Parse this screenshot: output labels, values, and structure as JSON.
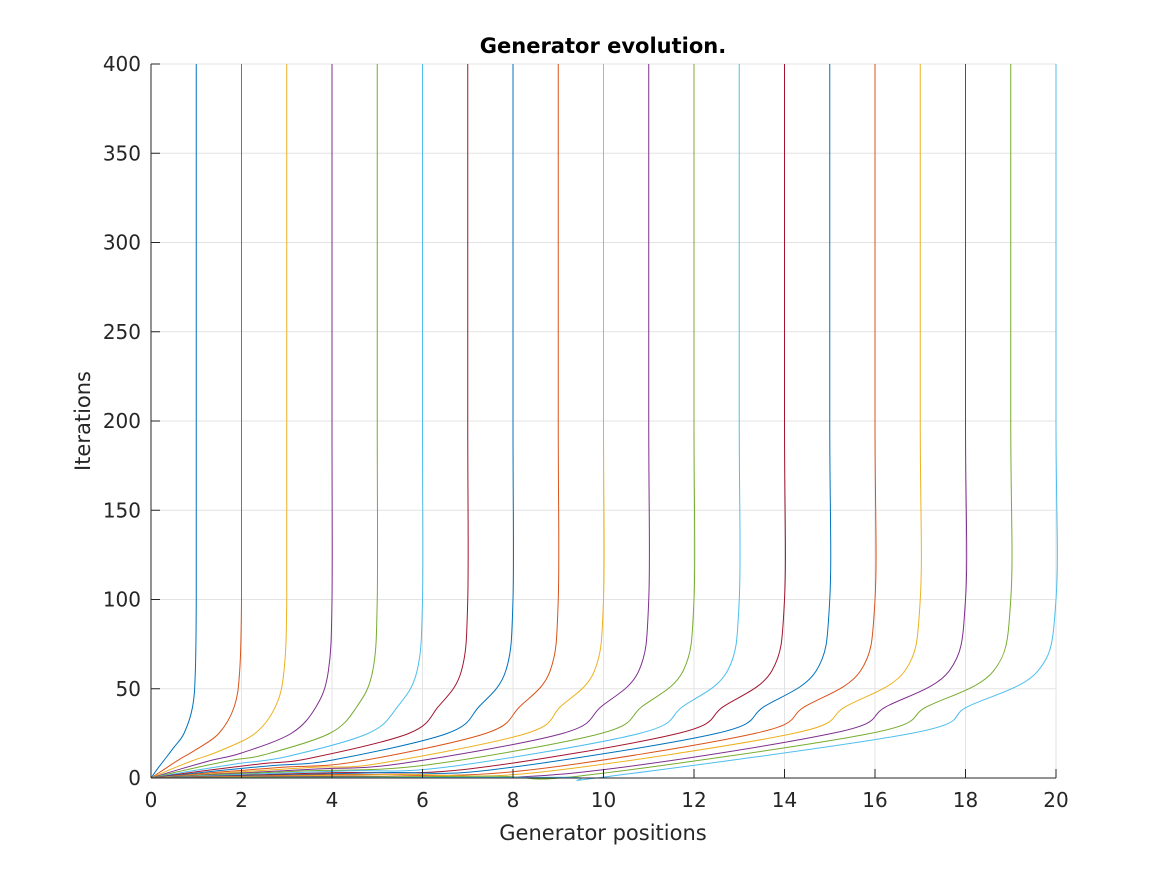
{
  "chart_data": {
    "type": "line",
    "title": "Generator evolution.",
    "xlabel": "Generator positions",
    "ylabel": "Iterations",
    "xlim": [
      0,
      20
    ],
    "ylim": [
      0,
      400
    ],
    "xticks": [
      0,
      2,
      4,
      6,
      8,
      10,
      12,
      14,
      16,
      18,
      20
    ],
    "yticks": [
      0,
      50,
      100,
      150,
      200,
      250,
      300,
      350,
      400
    ],
    "grid": true,
    "legend": "none",
    "series_shape": "Each generator starts at position 0 and moves right, converging to its final integer position; curve k reaches about half of its final position by iteration ~ (20-k)*0.85 and stays vertical up to iteration 400.",
    "series": [
      {
        "final_position": 1,
        "color": "#0072BD",
        "iterations": [
          0,
          5,
          10,
          17,
          25,
          40,
          60,
          100,
          200,
          400
        ],
        "positions": [
          0,
          0.14,
          0.29,
          0.5,
          0.73,
          0.92,
          0.98,
          1,
          1,
          1
        ]
      },
      {
        "final_position": 2,
        "color": "#D95319",
        "iterations": [
          0,
          5,
          10,
          16,
          25,
          40,
          60,
          100,
          200,
          400
        ],
        "positions": [
          0,
          0.3,
          0.6,
          1.0,
          1.5,
          1.84,
          1.96,
          2,
          2,
          2
        ]
      },
      {
        "final_position": 3,
        "color": "#EDB120",
        "iterations": [
          0,
          5,
          10,
          15,
          25,
          40,
          60,
          100,
          200,
          400
        ],
        "positions": [
          0,
          0.45,
          0.95,
          1.5,
          2.3,
          2.75,
          2.94,
          3,
          3,
          3
        ]
      },
      {
        "final_position": 4,
        "color": "#7E2F8E",
        "iterations": [
          0,
          5,
          10,
          14,
          25,
          40,
          60,
          100,
          200,
          400
        ],
        "positions": [
          0,
          0.65,
          1.35,
          2.0,
          3.1,
          3.65,
          3.92,
          4,
          4,
          4
        ]
      },
      {
        "final_position": 5,
        "color": "#77AC30",
        "iterations": [
          0,
          5,
          10,
          13,
          25,
          40,
          60,
          100,
          200,
          400
        ],
        "positions": [
          0,
          0.85,
          1.8,
          2.5,
          3.95,
          4.55,
          4.9,
          5,
          5,
          5
        ]
      },
      {
        "final_position": 6,
        "color": "#4DBEEE",
        "iterations": [
          0,
          4,
          8,
          12,
          25,
          40,
          60,
          100,
          200,
          400
        ],
        "positions": [
          0,
          0.9,
          1.9,
          3.0,
          4.8,
          5.45,
          5.88,
          6,
          6,
          6
        ]
      },
      {
        "final_position": 7,
        "color": "#A2142F",
        "iterations": [
          0,
          4,
          8,
          11,
          25,
          40,
          60,
          100,
          200,
          400
        ],
        "positions": [
          0,
          1.15,
          2.45,
          3.5,
          5.7,
          6.35,
          6.86,
          7,
          7,
          7
        ]
      },
      {
        "final_position": 8,
        "color": "#0072BD",
        "iterations": [
          0,
          4,
          7,
          10,
          25,
          40,
          60,
          100,
          200,
          400
        ],
        "positions": [
          0,
          1.45,
          2.7,
          4.0,
          6.55,
          7.25,
          7.84,
          8,
          8,
          8
        ]
      },
      {
        "final_position": 9,
        "color": "#D95319",
        "iterations": [
          0,
          3,
          6,
          9,
          25,
          40,
          60,
          100,
          200,
          400
        ],
        "positions": [
          0,
          1.35,
          2.9,
          4.5,
          7.4,
          8.15,
          8.82,
          9,
          9,
          9
        ]
      },
      {
        "final_position": 10,
        "color": "#EDB120",
        "iterations": [
          0,
          3,
          6,
          8,
          25,
          40,
          60,
          100,
          200,
          400
        ],
        "positions": [
          0,
          1.7,
          3.6,
          5.0,
          8.3,
          9.05,
          9.8,
          10,
          10,
          10
        ]
      },
      {
        "final_position": 11,
        "color": "#7E2F8E",
        "iterations": [
          0,
          2,
          5,
          8,
          25,
          40,
          60,
          100,
          200,
          400
        ],
        "positions": [
          0,
          1.35,
          3.6,
          5.5,
          9.1,
          9.95,
          10.78,
          11,
          11,
          11
        ]
      },
      {
        "final_position": 12,
        "color": "#77AC30",
        "iterations": [
          0,
          2,
          4,
          7,
          25,
          40,
          60,
          100,
          200,
          400
        ],
        "positions": [
          0,
          1.6,
          3.4,
          6.0,
          9.95,
          10.85,
          11.76,
          12,
          12,
          12
        ]
      },
      {
        "final_position": 13,
        "color": "#4DBEEE",
        "iterations": [
          0,
          2,
          4,
          6,
          25,
          40,
          60,
          100,
          200,
          400
        ],
        "positions": [
          0,
          2.0,
          4.3,
          6.5,
          10.8,
          11.75,
          12.74,
          13,
          13,
          13
        ]
      },
      {
        "final_position": 14,
        "color": "#A2142F",
        "iterations": [
          0,
          1,
          3,
          5,
          25,
          40,
          60,
          100,
          200,
          400
        ],
        "positions": [
          0,
          1.3,
          4.1,
          7.0,
          11.65,
          12.65,
          13.72,
          14,
          14,
          14
        ]
      },
      {
        "final_position": 15,
        "color": "#0072BD",
        "iterations": [
          0,
          1,
          3,
          4.5,
          25,
          40,
          60,
          100,
          200,
          400
        ],
        "positions": [
          0,
          1.6,
          5.1,
          7.5,
          12.5,
          13.55,
          14.7,
          15,
          15,
          15
        ]
      },
      {
        "final_position": 16,
        "color": "#D95319",
        "iterations": [
          0,
          1,
          2,
          3.5,
          25,
          40,
          60,
          100,
          200,
          400
        ],
        "positions": [
          0,
          2.0,
          4.3,
          8.0,
          13.35,
          14.45,
          15.68,
          16,
          16,
          16
        ]
      },
      {
        "final_position": 17,
        "color": "#EDB120",
        "iterations": [
          0,
          1,
          2,
          3,
          25,
          40,
          60,
          100,
          200,
          400
        ],
        "positions": [
          0,
          2.6,
          5.6,
          8.5,
          14.2,
          15.35,
          16.66,
          17,
          17,
          17
        ]
      },
      {
        "final_position": 18,
        "color": "#7E2F8E",
        "iterations": [
          0,
          0.5,
          1,
          2,
          25,
          40,
          60,
          100,
          200,
          400
        ],
        "positions": [
          0,
          2.0,
          4.4,
          9.0,
          15.05,
          16.25,
          17.64,
          18,
          18,
          18
        ]
      },
      {
        "final_position": 19,
        "color": "#77AC30",
        "iterations": [
          0,
          0.5,
          1,
          1.2,
          25,
          40,
          60,
          100,
          200,
          400
        ],
        "positions": [
          0,
          3.5,
          7.6,
          9.5,
          15.9,
          17.15,
          18.62,
          19,
          19,
          19
        ]
      },
      {
        "final_position": 20,
        "color": "#4DBEEE",
        "iterations": [
          0,
          0.2,
          0.4,
          0.5,
          25,
          40,
          60,
          100,
          200,
          400
        ],
        "positions": [
          0,
          5.0,
          9.2,
          10.0,
          16.8,
          18.05,
          19.6,
          20,
          20,
          20
        ]
      }
    ]
  }
}
